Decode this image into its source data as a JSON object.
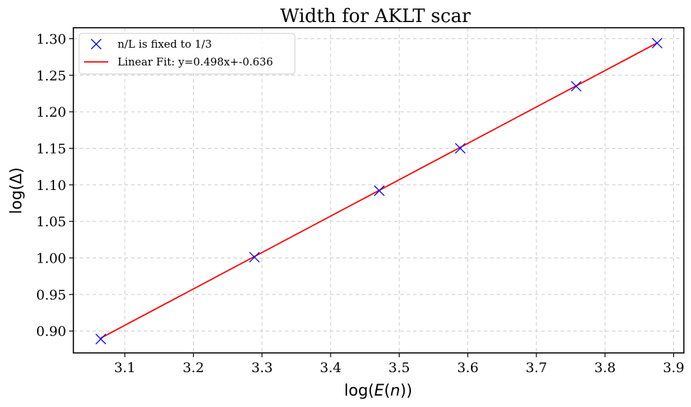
{
  "chart_data": {
    "type": "scatter",
    "title": "Width for AKLT scar",
    "xlabel": "log(E(n))",
    "ylabel": "log(Δ)",
    "xlim": [
      3.025,
      3.915
    ],
    "ylim": [
      0.87,
      1.315
    ],
    "grid": true,
    "legend_position": "top-left",
    "x_ticks": [
      "3.1",
      "3.2",
      "3.3",
      "3.4",
      "3.5",
      "3.6",
      "3.7",
      "3.8",
      "3.9"
    ],
    "x_tick_values": [
      3.1,
      3.2,
      3.3,
      3.4,
      3.5,
      3.6,
      3.7,
      3.8,
      3.9
    ],
    "y_ticks": [
      "0.90",
      "0.95",
      "1.00",
      "1.05",
      "1.10",
      "1.15",
      "1.20",
      "1.25",
      "1.30"
    ],
    "y_tick_values": [
      0.9,
      0.95,
      1.0,
      1.05,
      1.1,
      1.15,
      1.2,
      1.25,
      1.3
    ],
    "series": [
      {
        "name": "n/L is fixed to 1/3",
        "kind": "scatter",
        "marker": "x",
        "color": "#0000ff",
        "points": [
          {
            "x": 3.065,
            "y": 0.889
          },
          {
            "x": 3.289,
            "y": 1.001
          },
          {
            "x": 3.471,
            "y": 1.092
          },
          {
            "x": 3.589,
            "y": 1.15
          },
          {
            "x": 3.758,
            "y": 1.235
          },
          {
            "x": 3.876,
            "y": 1.294
          }
        ]
      },
      {
        "name": "Linear Fit: y=0.498x+-0.636",
        "kind": "line",
        "color": "#ff0000",
        "slope": 0.498,
        "intercept": -0.636,
        "x_range": [
          3.065,
          3.876
        ]
      }
    ]
  }
}
